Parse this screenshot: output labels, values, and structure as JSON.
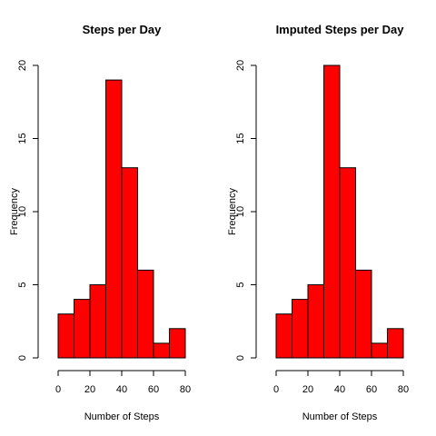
{
  "chart_data": [
    {
      "type": "bar",
      "title": "Steps per Day",
      "xlabel": "Number of Steps",
      "ylabel": "Frequency",
      "bin_edges": [
        0,
        10,
        20,
        30,
        40,
        50,
        60,
        70,
        80
      ],
      "values": [
        3,
        4,
        5,
        19,
        13,
        6,
        1,
        2
      ],
      "xlim": [
        0,
        80
      ],
      "ylim": [
        0,
        20
      ],
      "x_ticks": [
        "0",
        "20",
        "40",
        "60",
        "80"
      ],
      "y_ticks": [
        "0",
        "5",
        "10",
        "15",
        "20"
      ],
      "bar_color": "#ff0000",
      "grid": false,
      "legend": "none"
    },
    {
      "type": "bar",
      "title": "Imputed Steps per Day",
      "xlabel": "Number of Steps",
      "ylabel": "Frequency",
      "bin_edges": [
        0,
        10,
        20,
        30,
        40,
        50,
        60,
        70,
        80
      ],
      "values": [
        3,
        4,
        5,
        20,
        13,
        6,
        1,
        2
      ],
      "xlim": [
        0,
        80
      ],
      "ylim": [
        0,
        20
      ],
      "x_ticks": [
        "0",
        "20",
        "40",
        "60",
        "80"
      ],
      "y_ticks": [
        "0",
        "5",
        "10",
        "15",
        "20"
      ],
      "bar_color": "#ff0000",
      "grid": false,
      "legend": "none"
    }
  ]
}
